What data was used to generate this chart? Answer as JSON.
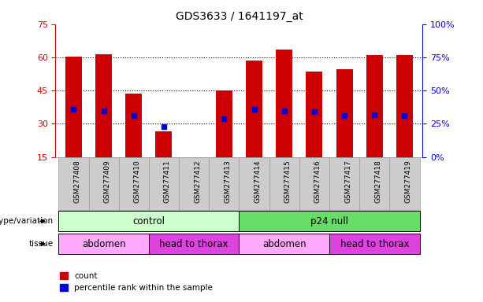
{
  "title": "GDS3633 / 1641197_at",
  "samples": [
    "GSM277408",
    "GSM277409",
    "GSM277410",
    "GSM277411",
    "GSM277412",
    "GSM277413",
    "GSM277414",
    "GSM277415",
    "GSM277416",
    "GSM277417",
    "GSM277418",
    "GSM277419"
  ],
  "bar_heights": [
    60.5,
    61.5,
    43.5,
    26.5,
    0,
    45.0,
    58.5,
    63.5,
    53.5,
    54.5,
    61.0,
    61.0
  ],
  "bar_base": 15,
  "percentile_values": [
    36,
    35,
    31,
    23,
    0,
    29,
    36,
    35,
    34,
    31,
    32,
    31
  ],
  "ylim": [
    15,
    75
  ],
  "yticks_left": [
    15,
    30,
    45,
    60,
    75
  ],
  "yticks_right": [
    0,
    25,
    50,
    75,
    100
  ],
  "yticklabels_right": [
    "0%",
    "25%",
    "50%",
    "75%",
    "100%"
  ],
  "bar_color": "#cc0000",
  "percentile_color": "#0000cc",
  "bar_width": 0.55,
  "genotype_groups": [
    {
      "label": "control",
      "start": 0,
      "end": 6,
      "color": "#ccffcc"
    },
    {
      "label": "p24 null",
      "start": 6,
      "end": 12,
      "color": "#66dd66"
    }
  ],
  "tissue_groups": [
    {
      "label": "abdomen",
      "start": 0,
      "end": 3,
      "color": "#ffaaff"
    },
    {
      "label": "head to thorax",
      "start": 3,
      "end": 6,
      "color": "#dd44dd"
    },
    {
      "label": "abdomen",
      "start": 6,
      "end": 9,
      "color": "#ffaaff"
    },
    {
      "label": "head to thorax",
      "start": 9,
      "end": 12,
      "color": "#dd44dd"
    }
  ],
  "left_axis_color": "#cc0000",
  "right_axis_color": "#0000cc",
  "tick_bg_color": "#cccccc",
  "tick_border_color": "#999999"
}
